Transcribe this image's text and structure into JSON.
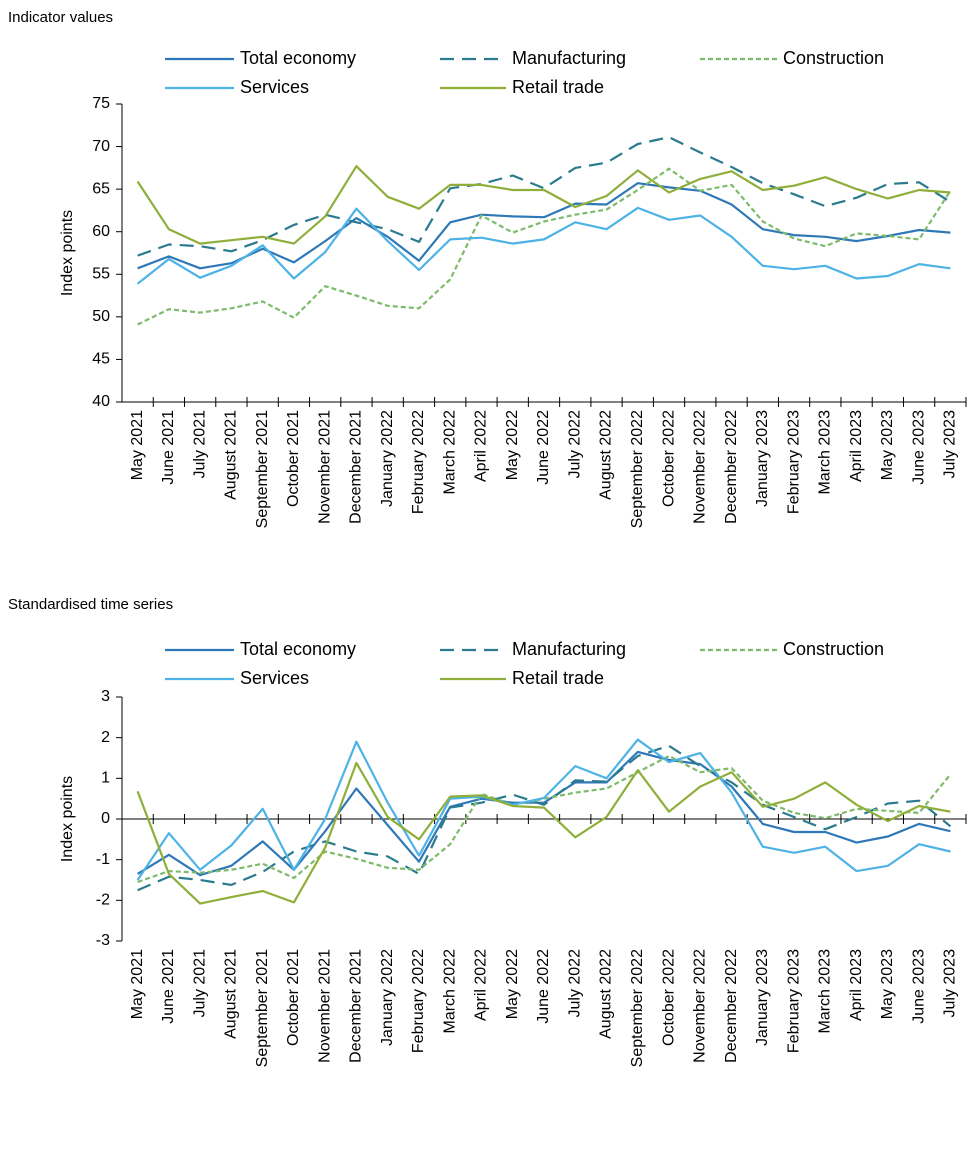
{
  "chart_data": [
    {
      "type": "line",
      "title": "Indicator values",
      "y_label": "Index points",
      "categories": [
        "May 2021",
        "June 2021",
        "July 2021",
        "August 2021",
        "September 2021",
        "October 2021",
        "November 2021",
        "December 2021",
        "January 2022",
        "February 2022",
        "March 2022",
        "April 2022",
        "May 2022",
        "June 2022",
        "July 2022",
        "August 2022",
        "September 2022",
        "October 2022",
        "November 2022",
        "December 2022",
        "January 2023",
        "February 2023",
        "March 2023",
        "April 2023",
        "May 2023",
        "June 2023",
        "July 2023"
      ],
      "ylim": [
        40,
        75
      ],
      "yticks": [
        40,
        45,
        50,
        55,
        60,
        65,
        70,
        75
      ],
      "grid": false,
      "series": [
        {
          "name": "Total economy",
          "color": "#2f78b7",
          "dash": "solid",
          "values": [
            55.7,
            57.1,
            55.7,
            56.3,
            58.0,
            56.4,
            58.9,
            61.6,
            59.4,
            56.6,
            61.1,
            62.0,
            61.8,
            61.7,
            63.3,
            63.2,
            65.7,
            65.2,
            64.8,
            63.2,
            60.3,
            59.6,
            59.4,
            58.9,
            59.5,
            60.2,
            59.9
          ]
        },
        {
          "name": "Manufacturing",
          "color": "#2b7b8e",
          "dash": "dashed",
          "values": [
            57.2,
            58.5,
            58.3,
            57.7,
            59.0,
            60.8,
            62.0,
            61.1,
            60.3,
            58.8,
            65.1,
            65.6,
            66.6,
            65.1,
            67.5,
            68.1,
            70.3,
            71.1,
            69.3,
            67.6,
            65.7,
            64.4,
            63.0,
            64.0,
            65.6,
            65.8,
            63.5
          ]
        },
        {
          "name": "Construction",
          "color": "#7dbb6a",
          "dash": "dotted",
          "values": [
            49.1,
            50.9,
            50.5,
            51.0,
            51.8,
            49.9,
            53.6,
            52.5,
            51.3,
            51.0,
            54.4,
            61.9,
            59.9,
            61.2,
            62.0,
            62.6,
            64.9,
            67.4,
            64.8,
            65.5,
            61.2,
            59.2,
            58.3,
            59.8,
            59.5,
            59.1,
            64.8
          ]
        },
        {
          "name": "Services",
          "color": "#4db3e6",
          "dash": "solid",
          "values": [
            53.9,
            56.8,
            54.6,
            56.0,
            58.4,
            54.5,
            57.6,
            62.7,
            58.9,
            55.5,
            59.1,
            59.3,
            58.6,
            59.1,
            61.1,
            60.3,
            62.8,
            61.4,
            61.9,
            59.4,
            56.0,
            55.6,
            56.0,
            54.5,
            54.8,
            56.2,
            55.7
          ]
        },
        {
          "name": "Retail trade",
          "color": "#8fae3a",
          "dash": "solid",
          "values": [
            65.9,
            60.3,
            58.6,
            59.0,
            59.4,
            58.6,
            61.8,
            67.7,
            64.1,
            62.7,
            65.5,
            65.5,
            64.9,
            64.9,
            62.9,
            64.2,
            67.2,
            64.6,
            66.2,
            67.1,
            64.9,
            65.4,
            66.4,
            65.0,
            63.9,
            64.9,
            64.6
          ]
        }
      ]
    },
    {
      "type": "line",
      "title": "Standardised time series",
      "y_label": "Index points",
      "categories": [
        "May 2021",
        "June 2021",
        "July 2021",
        "August 2021",
        "September 2021",
        "October 2021",
        "November 2021",
        "December 2021",
        "January 2022",
        "February 2022",
        "March 2022",
        "April 2022",
        "May 2022",
        "June 2022",
        "July 2022",
        "August 2022",
        "September 2022",
        "October 2022",
        "November 2022",
        "December 2022",
        "January 2023",
        "February 2023",
        "March 2023",
        "April 2023",
        "May 2023",
        "June 2023",
        "July 2023"
      ],
      "ylim": [
        -3,
        3
      ],
      "yticks": [
        -3,
        -2,
        -1,
        0,
        1,
        2,
        3
      ],
      "grid": false,
      "series": [
        {
          "name": "Total economy",
          "color": "#2f78b7",
          "dash": "solid",
          "values": [
            -1.35,
            -0.88,
            -1.38,
            -1.15,
            -0.55,
            -1.25,
            -0.3,
            0.75,
            -0.15,
            -1.05,
            0.3,
            0.5,
            0.4,
            0.4,
            0.9,
            0.9,
            1.65,
            1.45,
            1.35,
            0.8,
            -0.12,
            -0.32,
            -0.32,
            -0.58,
            -0.43,
            -0.12,
            -0.3
          ]
        },
        {
          "name": "Manufacturing",
          "color": "#2b7b8e",
          "dash": "dashed",
          "values": [
            -1.75,
            -1.42,
            -1.5,
            -1.62,
            -1.3,
            -0.8,
            -0.55,
            -0.8,
            -0.92,
            -1.35,
            0.28,
            0.4,
            0.6,
            0.35,
            0.95,
            0.92,
            1.55,
            1.8,
            1.3,
            0.9,
            0.35,
            0.05,
            -0.25,
            0.05,
            0.38,
            0.45,
            -0.18
          ]
        },
        {
          "name": "Construction",
          "color": "#7dbb6a",
          "dash": "dotted",
          "values": [
            -1.55,
            -1.28,
            -1.32,
            -1.25,
            -1.1,
            -1.45,
            -0.8,
            -0.98,
            -1.2,
            -1.25,
            -0.62,
            0.62,
            0.35,
            0.5,
            0.65,
            0.75,
            1.15,
            1.55,
            1.15,
            1.25,
            0.45,
            0.15,
            0.02,
            0.25,
            0.2,
            0.15,
            1.1
          ]
        },
        {
          "name": "Services",
          "color": "#4db3e6",
          "dash": "solid",
          "values": [
            -1.5,
            -0.35,
            -1.25,
            -0.65,
            0.25,
            -1.25,
            0.0,
            1.9,
            0.4,
            -0.9,
            0.5,
            0.55,
            0.35,
            0.52,
            1.3,
            1.0,
            1.95,
            1.4,
            1.62,
            0.65,
            -0.68,
            -0.83,
            -0.68,
            -1.28,
            -1.15,
            -0.62,
            -0.8
          ]
        },
        {
          "name": "Retail trade",
          "color": "#8fae3a",
          "dash": "solid",
          "values": [
            0.68,
            -1.35,
            -2.08,
            -1.92,
            -1.77,
            -2.05,
            -0.7,
            1.38,
            0.05,
            -0.5,
            0.55,
            0.58,
            0.32,
            0.28,
            -0.45,
            0.05,
            1.2,
            0.18,
            0.8,
            1.15,
            0.3,
            0.5,
            0.9,
            0.35,
            -0.05,
            0.32,
            0.18
          ]
        }
      ]
    }
  ]
}
